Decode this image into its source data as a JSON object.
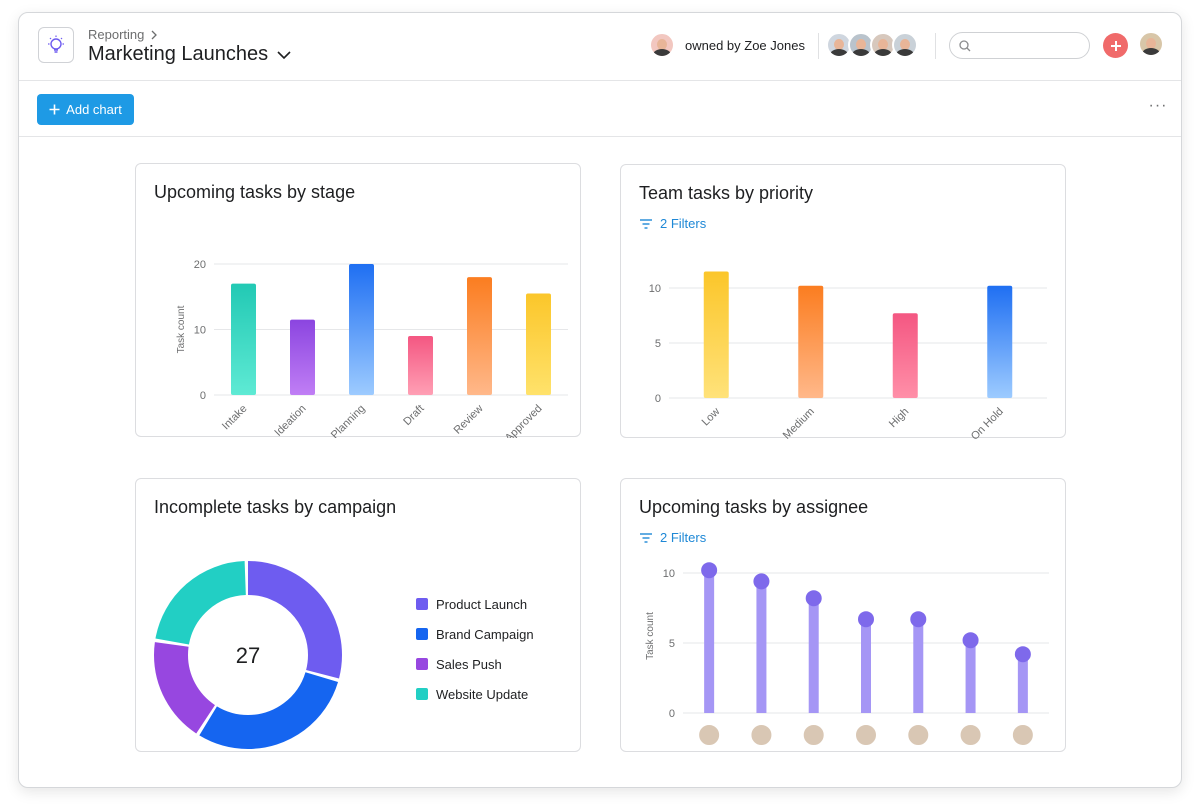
{
  "header": {
    "breadcrumb": "Reporting",
    "title": "Marketing Launches",
    "owner_text": "owned by Zoe Jones",
    "search_placeholder": ""
  },
  "toolbar": {
    "add_chart_label": "Add chart",
    "more_label": "···"
  },
  "colors": {
    "accent": "#1e9ae5",
    "plus": "#f06a6a",
    "filter_link": "#1e88d6"
  },
  "icons": [
    "lightbulb-icon",
    "chevron-right-icon",
    "chevron-down-icon",
    "search-icon",
    "plus-icon",
    "filter-icon",
    "more-icon"
  ],
  "chart_data": [
    {
      "type": "bar",
      "title": "Upcoming tasks by stage",
      "ylabel": "Task count",
      "categories": [
        "Intake",
        "Ideation",
        "Planning",
        "Draft",
        "Review",
        "Approved"
      ],
      "values": [
        17,
        11.5,
        20,
        9,
        18,
        15.5
      ],
      "yticks": [
        0,
        10,
        20
      ],
      "ylim": [
        0,
        20
      ],
      "grid": true,
      "colors": [
        [
          "#5eead4",
          "#22c9b4"
        ],
        [
          "#c07ef5",
          "#8b45e0"
        ],
        [
          "#9dcbff",
          "#1f6ff2"
        ],
        [
          "#ff9fb4",
          "#f45782"
        ],
        [
          "#ffb88a",
          "#fb7d20"
        ],
        [
          "#ffe26b",
          "#fbc62a"
        ]
      ]
    },
    {
      "type": "bar",
      "title": "Team tasks by priority",
      "filters": "2 Filters",
      "categories": [
        "Low",
        "Medium",
        "High",
        "On Hold"
      ],
      "values": [
        11.5,
        10.2,
        7.7,
        10.2
      ],
      "yticks": [
        0,
        5,
        10
      ],
      "ylim": [
        0,
        12
      ],
      "grid": true,
      "colors": [
        [
          "#ffe27a",
          "#fbc62a"
        ],
        [
          "#ffb88a",
          "#fb7d20"
        ],
        [
          "#ff8fa8",
          "#f45782"
        ],
        [
          "#9dcbff",
          "#1f6ff2"
        ]
      ]
    },
    {
      "type": "pie",
      "title": "Incomplete tasks by campaign",
      "total": "27",
      "labels": [
        "Product Launch",
        "Brand Campaign",
        "Sales Push",
        "Website Update"
      ],
      "values": [
        8,
        8,
        5,
        6
      ],
      "colors": [
        "#6e5cf0",
        "#1565f0",
        "#9747e0",
        "#22cfc4"
      ],
      "legend": "right"
    },
    {
      "type": "bar",
      "title": "Upcoming tasks by assignee",
      "filters": "2 Filters",
      "ylabel": "Task count",
      "categories": [
        "",
        "",
        "",
        "",
        "",
        "",
        ""
      ],
      "values": [
        10.2,
        9.4,
        8.2,
        6.7,
        6.7,
        5.2,
        4.2
      ],
      "yticks": [
        0,
        5,
        10
      ],
      "ylim": [
        0,
        11
      ],
      "grid": true,
      "colors": [
        "#a596f5",
        "#7e69eb"
      ]
    }
  ]
}
